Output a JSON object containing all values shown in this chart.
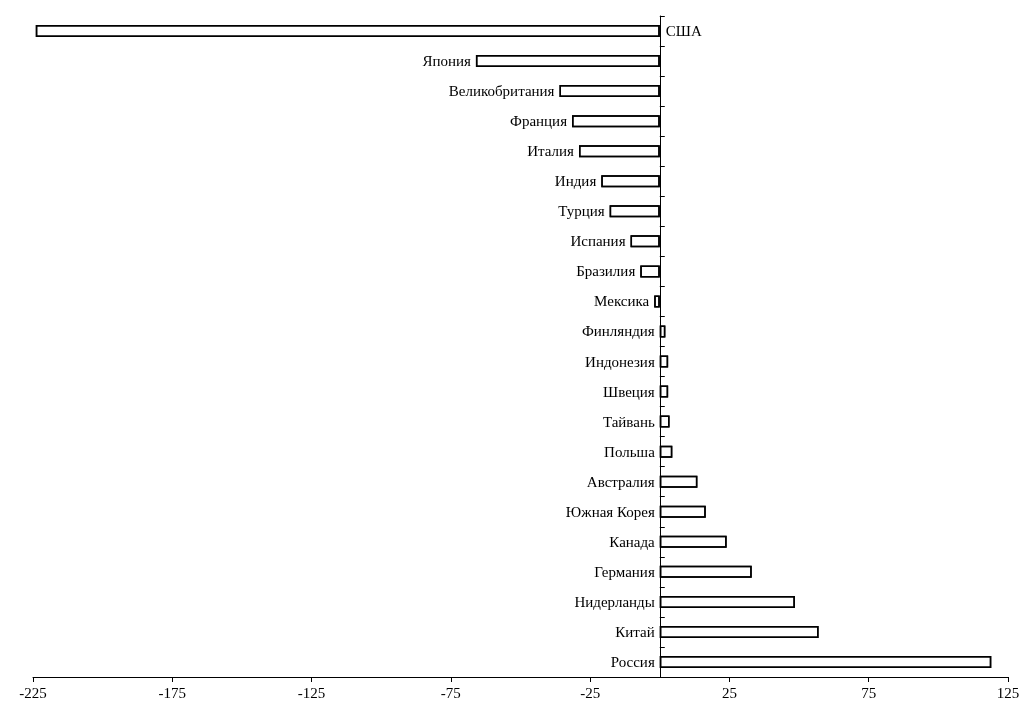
{
  "chart_data": {
    "type": "bar",
    "orientation": "horizontal",
    "categories": [
      "США",
      "Япония",
      "Великобритания",
      "Франция",
      "Италия",
      "Индия",
      "Турция",
      "Испания",
      "Бразилия",
      "Мексика",
      "Финляндия",
      "Индонезия",
      "Швеция",
      "Тайвань",
      "Польша",
      "Австралия",
      "Южная Корея",
      "Канада",
      "Германия",
      "Нидерланды",
      "Китай",
      "Россия"
    ],
    "values": [
      -224,
      -66,
      -36,
      -31.5,
      -29,
      -21,
      -18,
      -10.5,
      -7,
      -2,
      2,
      3,
      3,
      3.5,
      4.5,
      13.5,
      16.5,
      24,
      33,
      48.5,
      57,
      119
    ],
    "color": "#ffffff",
    "xlim": [
      -225,
      125
    ],
    "xticks": [
      -225,
      -175,
      -125,
      -75,
      -25,
      25,
      75,
      125
    ],
    "grid": false
  }
}
